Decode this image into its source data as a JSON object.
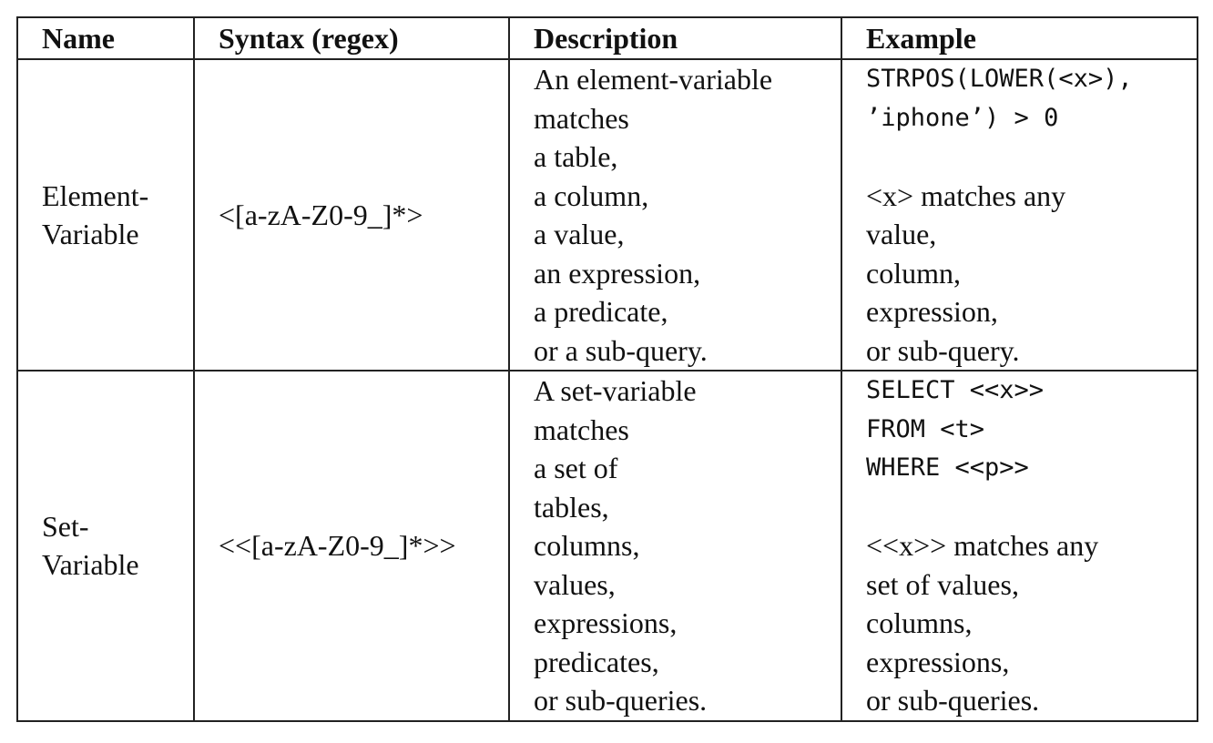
{
  "headers": [
    "Name",
    "Syntax (regex)",
    "Description",
    "Example"
  ],
  "rows": [
    {
      "name_lines": [
        "Element-",
        "Variable"
      ],
      "syntax": "<[a-zA-Z0-9_]*>",
      "description_lines": [
        "An element-variable",
        "matches",
        "a table,",
        "a column,",
        "a value,",
        "an expression,",
        "a predicate,",
        "or a sub-query."
      ],
      "example_code_lines": [
        "STRPOS(LOWER(<x>),",
        "’iphone’) > 0"
      ],
      "example_text_lines": [
        "<x> matches any",
        "value,",
        "column,",
        "expression,",
        "or sub-query."
      ]
    },
    {
      "name_lines": [
        "Set-",
        "Variable"
      ],
      "syntax": "<<[a-zA-Z0-9_]*>>",
      "description_lines": [
        "A set-variable",
        "matches",
        "a set of",
        "tables,",
        "columns,",
        "values,",
        "expressions,",
        "predicates,",
        "or sub-queries."
      ],
      "example_code_lines": [
        "SELECT <<x>>",
        "FROM <t>",
        "WHERE <<p>>"
      ],
      "example_text_lines": [
        "<<x>> matches any",
        "set of values,",
        "columns,",
        "expressions,",
        "or sub-queries."
      ]
    }
  ]
}
